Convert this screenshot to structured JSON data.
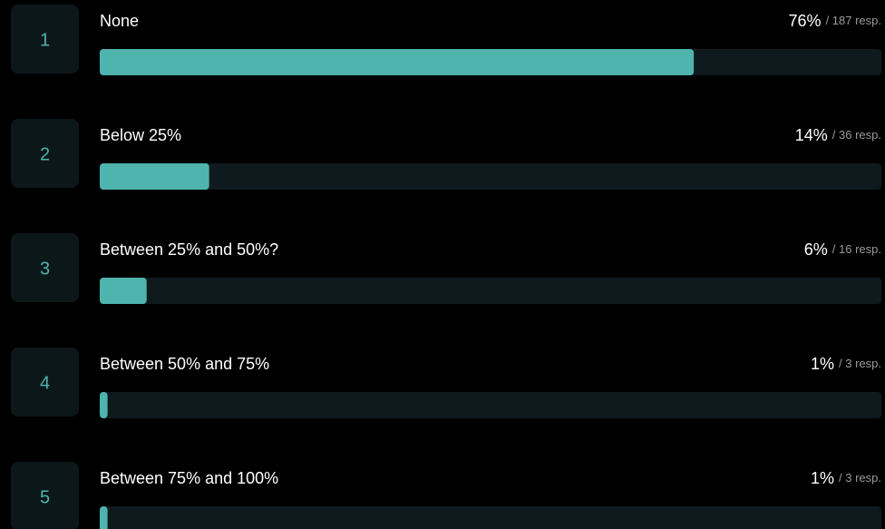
{
  "chart_data": {
    "type": "bar",
    "ranks": [
      1,
      2,
      3,
      4,
      5
    ],
    "categories": [
      "None",
      "Below 25%",
      "Between 25% and 50%?",
      "Between 50% and 75%",
      "Between 75% and 100%"
    ],
    "values": [
      76,
      14,
      6,
      1,
      1
    ],
    "value_labels": [
      "76%",
      "14%",
      "6%",
      "1%",
      "1%"
    ],
    "response_labels": [
      "/ 187 resp.",
      "/ 36 resp.",
      "/ 16 resp.",
      "/ 3 resp.",
      "/ 3 resp."
    ],
    "xlim": [
      0,
      100
    ],
    "color": "#4fb3ae"
  }
}
